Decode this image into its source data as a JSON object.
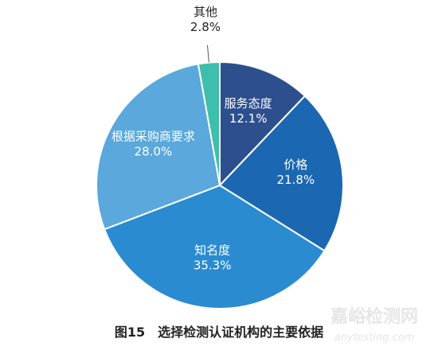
{
  "chart_data": {
    "type": "pie",
    "title": "图15　选择检测认证机构的主要依据",
    "categories": [
      "服务态度",
      "价格",
      "知名度",
      "根据采购商要求",
      "其他"
    ],
    "values": [
      12.1,
      21.8,
      35.3,
      28.0,
      2.8
    ],
    "value_labels": [
      "12.1%",
      "21.8%",
      "35.3%",
      "28.0%",
      "2.8%"
    ],
    "colors": [
      "#2d4f8e",
      "#1b67b1",
      "#2a8bd0",
      "#5aa8dc",
      "#3dbfab"
    ]
  },
  "watermark": {
    "name": "嘉峪检测网",
    "url": "anytesting.com"
  }
}
